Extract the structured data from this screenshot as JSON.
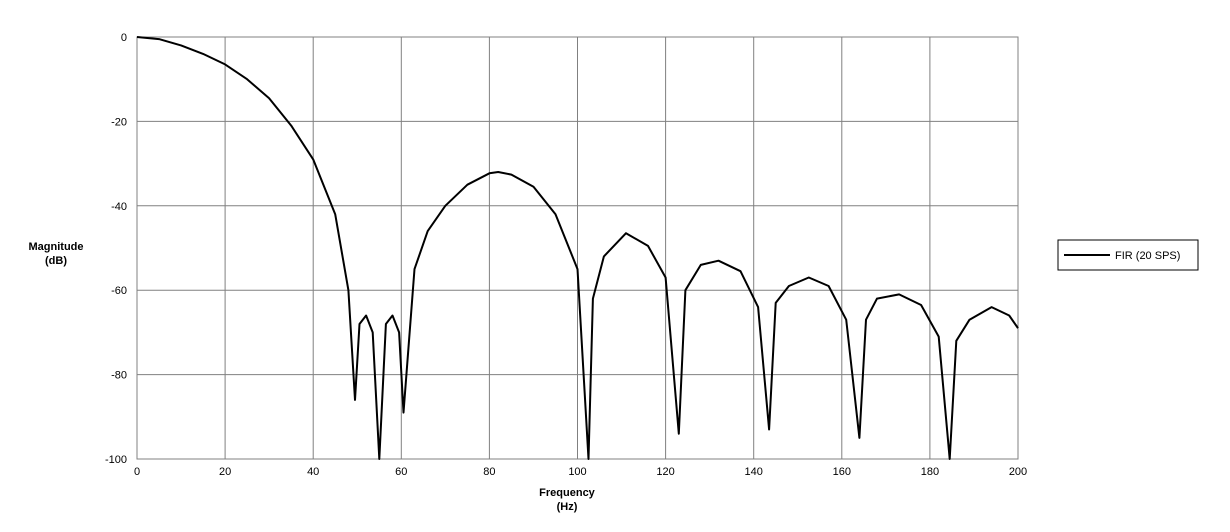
{
  "chart_data": {
    "type": "line",
    "title": "",
    "xlabel": "Frequency",
    "xlabel_unit": "(Hz)",
    "ylabel": "Magnitude",
    "ylabel_unit": "(dB)",
    "xlim": [
      0,
      200
    ],
    "ylim": [
      -100,
      0
    ],
    "x_ticks": [
      0,
      20,
      40,
      60,
      80,
      100,
      120,
      140,
      160,
      180,
      200
    ],
    "y_ticks": [
      0,
      -20,
      -40,
      -60,
      -80,
      -100
    ],
    "grid": true,
    "legend_position": "right",
    "series": [
      {
        "name": "FIR (20 SPS)",
        "color": "#000000",
        "x": [
          0,
          5,
          10,
          15,
          20,
          25,
          30,
          35,
          40,
          45,
          48,
          49.5,
          50.5,
          52,
          53.5,
          55,
          56.5,
          58,
          59.5,
          60.5,
          63,
          66,
          70,
          75,
          80,
          82,
          85,
          90,
          95,
          100,
          102.5,
          103.5,
          106,
          111,
          116,
          120,
          123,
          124.5,
          128,
          132,
          137,
          141,
          143.5,
          145,
          148,
          152.5,
          157,
          161,
          164,
          165.5,
          168,
          173,
          178,
          182,
          184.5,
          186,
          189,
          194,
          198,
          200
        ],
        "y": [
          0,
          -0.5,
          -2,
          -4,
          -6.5,
          -10,
          -14.5,
          -21,
          -29,
          -42,
          -60,
          -86,
          -68,
          -66,
          -70,
          -100,
          -68,
          -66,
          -70,
          -89,
          -55,
          -46,
          -40,
          -35,
          -32.3,
          -32,
          -32.6,
          -35.5,
          -42,
          -55,
          -100,
          -62,
          -52,
          -46.5,
          -49.5,
          -57,
          -94,
          -60,
          -54,
          -53,
          -55.5,
          -64,
          -93,
          -63,
          -59,
          -57,
          -59,
          -67,
          -95,
          -67,
          -62,
          -61,
          -63.5,
          -71,
          -100,
          -72,
          -67,
          -64,
          -66,
          -69
        ]
      }
    ]
  }
}
